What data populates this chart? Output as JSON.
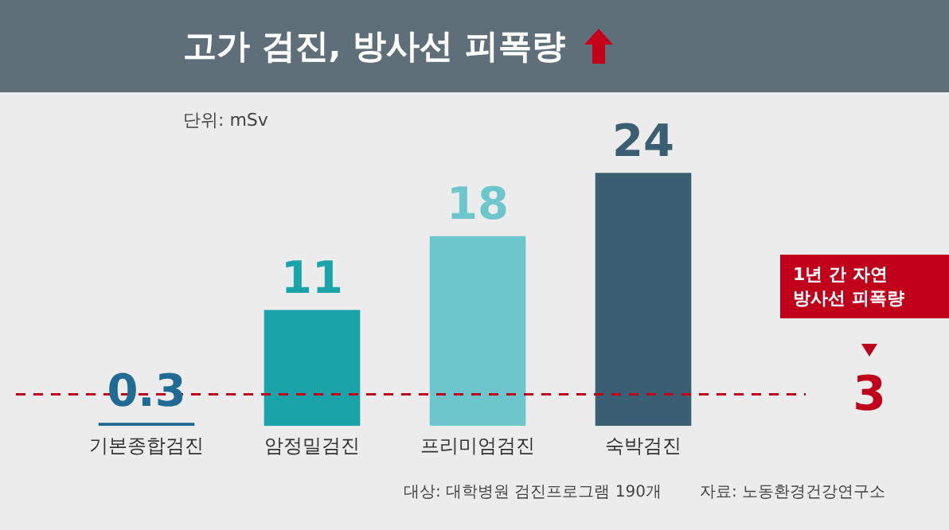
{
  "chart_data": {
    "type": "bar",
    "title": "고가 검진, 방사선 피폭량",
    "subtitle": "단위: mSv",
    "categories": [
      "기본종합검진",
      "암정밀검진",
      "프리미엄검진",
      "숙박검진"
    ],
    "values": [
      0.3,
      11,
      18,
      24
    ],
    "colors": [
      "#1f6b94",
      "#1aa3a8",
      "#6cc6cc",
      "#3a5f72"
    ],
    "data_labels": true,
    "ref_lines": [
      {
        "axis": "y",
        "value": 3,
        "label": "3",
        "color": "#c0001a",
        "line_style": "dashed"
      }
    ],
    "annotations": [
      "1년 간 자연 방사선 피폭량",
      "대상: 대학병원 검진프로그램 190개",
      "자료: 노동환경건강연구소"
    ],
    "grid": false,
    "legend": false
  }
}
